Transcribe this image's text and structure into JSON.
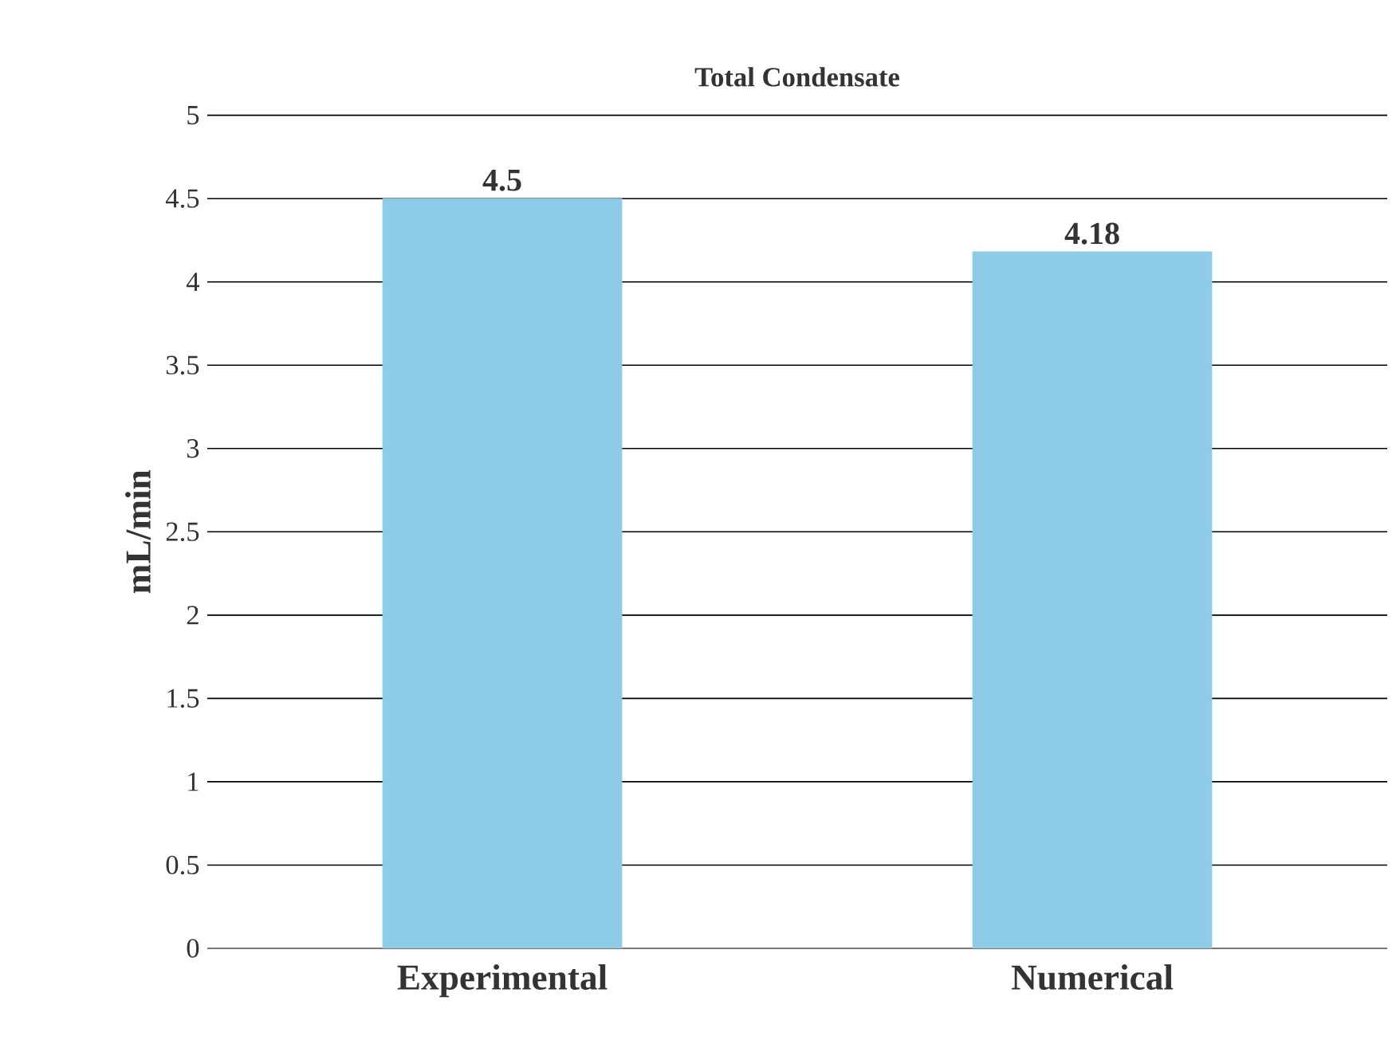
{
  "chart_data": {
    "type": "bar",
    "title": "Total Condensate",
    "ylabel": "mL/min",
    "categories": [
      "Experimental",
      "Numerical"
    ],
    "values": [
      4.5,
      4.18
    ],
    "color": "#8ecbe6",
    "ylim": [
      0,
      5
    ],
    "yticks": [
      0,
      0.5,
      1,
      1.5,
      2,
      2.5,
      3,
      3.5,
      4,
      4.5,
      5
    ],
    "grid": "y",
    "data_labels": true
  }
}
